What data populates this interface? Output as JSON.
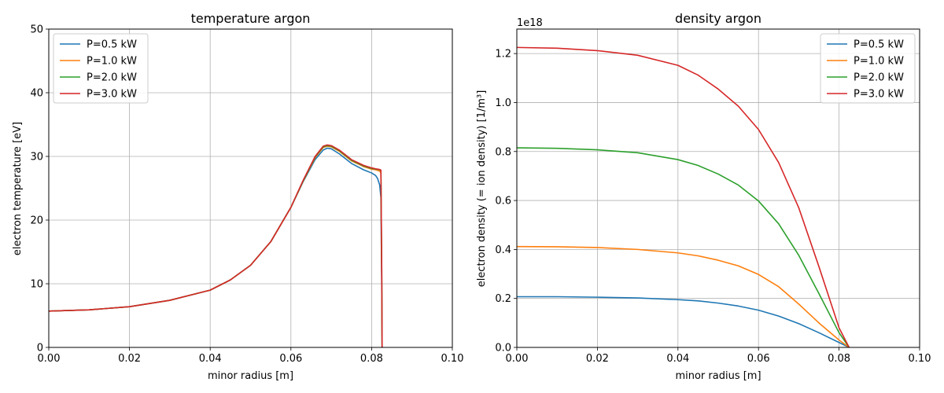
{
  "colors": {
    "series": [
      "#1f77b4",
      "#ff7f0e",
      "#2ca02c",
      "#d62728"
    ],
    "grid": "#b0b0b0",
    "axes": "#000000",
    "legend_border": "#cccccc"
  },
  "chart_data": [
    {
      "type": "line",
      "title": "temperature argon",
      "xlabel": "minor radius [m]",
      "ylabel": "electron temperature [eV]",
      "xlim": [
        0,
        0.1
      ],
      "ylim": [
        0,
        50
      ],
      "xticks": [
        0.0,
        0.02,
        0.04,
        0.06,
        0.08,
        0.1
      ],
      "xtick_labels": [
        "0.00",
        "0.02",
        "0.04",
        "0.06",
        "0.08",
        "0.10"
      ],
      "yticks": [
        0,
        10,
        20,
        30,
        40,
        50
      ],
      "ytick_labels": [
        "0",
        "10",
        "20",
        "30",
        "40",
        "50"
      ],
      "grid": true,
      "legend_position": "upper left",
      "series": [
        {
          "name": "P=0.5 kW",
          "x": [
            0.0,
            0.01,
            0.02,
            0.03,
            0.04,
            0.045,
            0.05,
            0.055,
            0.06,
            0.063,
            0.066,
            0.068,
            0.069,
            0.07,
            0.072,
            0.075,
            0.078,
            0.08,
            0.081,
            0.0815,
            0.082,
            0.0823,
            0.0825,
            0.0826
          ],
          "y": [
            5.7,
            5.9,
            6.4,
            7.4,
            9.0,
            10.6,
            12.9,
            16.6,
            22.0,
            26.0,
            29.5,
            31.0,
            31.3,
            31.2,
            30.4,
            28.9,
            27.9,
            27.4,
            27.0,
            26.5,
            25.5,
            23.5,
            10.0,
            0.0
          ]
        },
        {
          "name": "P=1.0 kW",
          "x": [
            0.0,
            0.01,
            0.02,
            0.03,
            0.04,
            0.045,
            0.05,
            0.055,
            0.06,
            0.063,
            0.066,
            0.068,
            0.069,
            0.07,
            0.072,
            0.075,
            0.078,
            0.08,
            0.081,
            0.0815,
            0.082,
            0.0823,
            0.0825,
            0.0826
          ],
          "y": [
            5.7,
            5.9,
            6.4,
            7.4,
            9.0,
            10.6,
            12.9,
            16.6,
            22.0,
            26.1,
            29.8,
            31.4,
            31.6,
            31.5,
            30.8,
            29.3,
            28.4,
            28.0,
            27.9,
            27.8,
            27.7,
            27.4,
            12.0,
            0.0
          ]
        },
        {
          "name": "P=2.0 kW",
          "x": [
            0.0,
            0.01,
            0.02,
            0.03,
            0.04,
            0.045,
            0.05,
            0.055,
            0.06,
            0.063,
            0.066,
            0.068,
            0.069,
            0.07,
            0.072,
            0.075,
            0.078,
            0.08,
            0.081,
            0.0815,
            0.082,
            0.0823,
            0.0825,
            0.0826
          ],
          "y": [
            5.7,
            5.9,
            6.4,
            7.4,
            9.0,
            10.6,
            12.9,
            16.6,
            22.0,
            26.1,
            29.9,
            31.5,
            31.7,
            31.6,
            30.9,
            29.4,
            28.5,
            28.1,
            28.0,
            27.95,
            27.9,
            27.8,
            12.5,
            0.0
          ]
        },
        {
          "name": "P=3.0 kW",
          "x": [
            0.0,
            0.01,
            0.02,
            0.03,
            0.04,
            0.045,
            0.05,
            0.055,
            0.06,
            0.063,
            0.066,
            0.068,
            0.069,
            0.07,
            0.072,
            0.075,
            0.078,
            0.08,
            0.081,
            0.0815,
            0.082,
            0.0823,
            0.0825,
            0.0826
          ],
          "y": [
            5.7,
            5.9,
            6.4,
            7.4,
            9.0,
            10.6,
            12.9,
            16.6,
            22.0,
            26.2,
            30.0,
            31.6,
            31.8,
            31.7,
            31.0,
            29.5,
            28.6,
            28.2,
            28.05,
            28.0,
            27.95,
            27.85,
            12.8,
            0.0
          ]
        }
      ]
    },
    {
      "type": "line",
      "title": "density argon",
      "xlabel": "minor radius [m]",
      "ylabel": "electron density (= ion density) [1/m³]",
      "y_offset_label": "1e18",
      "xlim": [
        0,
        0.1
      ],
      "ylim": [
        0,
        1.3
      ],
      "xticks": [
        0.0,
        0.02,
        0.04,
        0.06,
        0.08,
        0.1
      ],
      "xtick_labels": [
        "0.00",
        "0.02",
        "0.04",
        "0.06",
        "0.08",
        "0.10"
      ],
      "yticks": [
        0.0,
        0.2,
        0.4,
        0.6,
        0.8,
        1.0,
        1.2
      ],
      "ytick_labels": [
        "0.0",
        "0.2",
        "0.4",
        "0.6",
        "0.8",
        "1.0",
        "1.2"
      ],
      "grid": true,
      "legend_position": "upper right",
      "series": [
        {
          "name": "P=0.5 kW",
          "x": [
            0.0,
            0.01,
            0.02,
            0.03,
            0.04,
            0.045,
            0.05,
            0.055,
            0.06,
            0.065,
            0.07,
            0.075,
            0.08,
            0.0825
          ],
          "y": [
            0.207,
            0.207,
            0.205,
            0.202,
            0.195,
            0.19,
            0.181,
            0.169,
            0.152,
            0.128,
            0.097,
            0.06,
            0.02,
            0.0
          ]
        },
        {
          "name": "P=1.0 kW",
          "x": [
            0.0,
            0.01,
            0.02,
            0.03,
            0.04,
            0.045,
            0.05,
            0.055,
            0.06,
            0.065,
            0.07,
            0.075,
            0.08,
            0.0825
          ],
          "y": [
            0.412,
            0.411,
            0.408,
            0.4,
            0.386,
            0.374,
            0.356,
            0.333,
            0.298,
            0.248,
            0.177,
            0.1,
            0.03,
            0.0
          ]
        },
        {
          "name": "P=2.0 kW",
          "x": [
            0.0,
            0.01,
            0.02,
            0.03,
            0.04,
            0.045,
            0.05,
            0.055,
            0.06,
            0.065,
            0.07,
            0.075,
            0.08,
            0.0825
          ],
          "y": [
            0.815,
            0.813,
            0.807,
            0.795,
            0.767,
            0.743,
            0.708,
            0.663,
            0.598,
            0.505,
            0.376,
            0.22,
            0.06,
            0.0
          ]
        },
        {
          "name": "P=3.0 kW",
          "x": [
            0.0,
            0.01,
            0.02,
            0.03,
            0.04,
            0.045,
            0.05,
            0.055,
            0.06,
            0.065,
            0.07,
            0.075,
            0.08,
            0.0825
          ],
          "y": [
            1.225,
            1.222,
            1.212,
            1.193,
            1.152,
            1.112,
            1.055,
            0.985,
            0.89,
            0.755,
            0.57,
            0.33,
            0.08,
            0.0
          ]
        }
      ]
    }
  ]
}
